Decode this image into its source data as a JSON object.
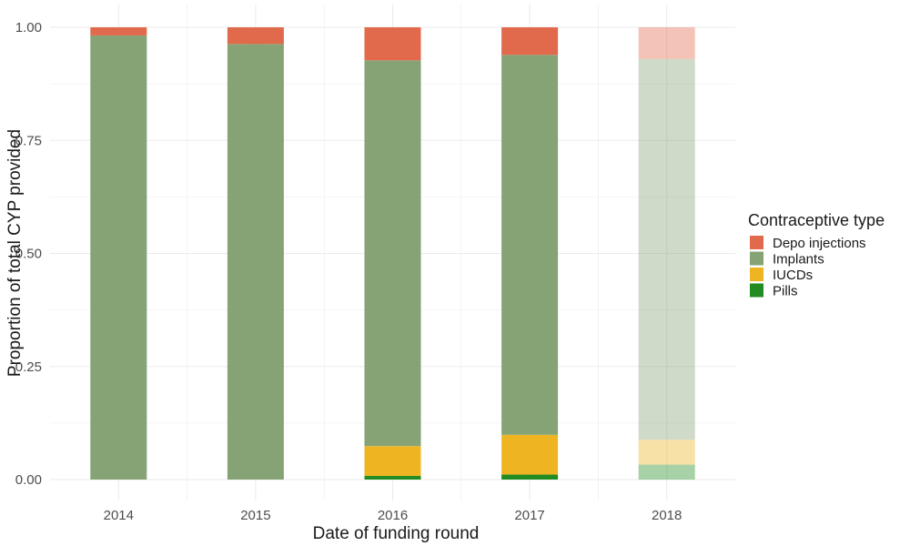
{
  "chart_data": {
    "type": "bar",
    "stacked": true,
    "xlabel": "Date of funding round",
    "ylabel": "Proportion of total CYP provided",
    "ylim": [
      0,
      1
    ],
    "yticks": [
      "0.00",
      "0.25",
      "0.50",
      "0.75",
      "1.00"
    ],
    "categories": [
      "2014",
      "2015",
      "2016",
      "2017",
      "2018"
    ],
    "grid": true,
    "legend": {
      "title": "Contraceptive type",
      "placement": "right"
    },
    "series": [
      {
        "name": "Pills",
        "color": "#228B22",
        "values": [
          0,
          0,
          0.008,
          0.011,
          0.033
        ]
      },
      {
        "name": "IUCDs",
        "color": "#EEB422",
        "values": [
          0,
          0,
          0.066,
          0.088,
          0.055
        ]
      },
      {
        "name": "Implants",
        "color": "#86A376",
        "values": [
          0.982,
          0.963,
          0.853,
          0.84,
          0.842
        ]
      },
      {
        "name": "Depo injections",
        "color": "#E06A4B",
        "values": [
          0.018,
          0.037,
          0.073,
          0.061,
          0.07
        ]
      }
    ],
    "legend_order": [
      "Depo injections",
      "Implants",
      "IUCDs",
      "Pills"
    ],
    "faded_categories": [
      "2018"
    ]
  }
}
